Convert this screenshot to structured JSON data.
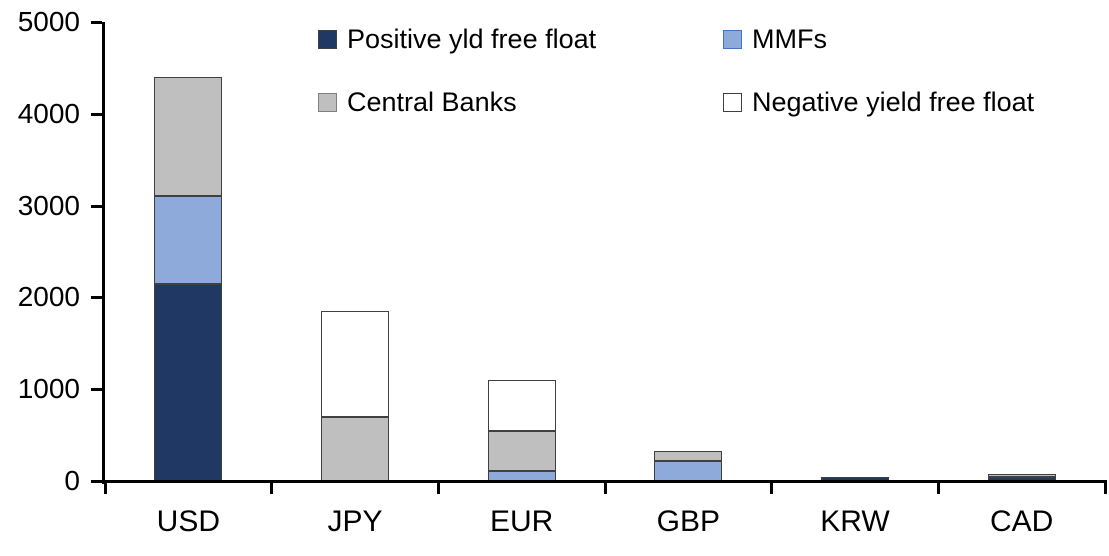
{
  "chart_data": {
    "type": "bar",
    "stacked": true,
    "title": "",
    "xlabel": "",
    "ylabel": "",
    "categories": [
      "USD",
      "JPY",
      "EUR",
      "GBP",
      "KRW",
      "CAD"
    ],
    "series": [
      {
        "name": "Positive yld free float",
        "color": "#1F3864",
        "border": "#404040",
        "values": [
          2150,
          0,
          0,
          0,
          45,
          45
        ]
      },
      {
        "name": "MMFs",
        "color": "#8EAADB",
        "border": "#4472C4",
        "values": [
          950,
          0,
          110,
          220,
          0,
          0
        ]
      },
      {
        "name": "Central Banks",
        "color": "#BFBFBF",
        "border": "#7F7F7F",
        "values": [
          1300,
          700,
          430,
          110,
          0,
          30
        ]
      },
      {
        "name": "Negative yield free float",
        "color": "#FFFFFF",
        "border": "#404040",
        "values": [
          0,
          1150,
          560,
          0,
          0,
          0
        ]
      }
    ],
    "stack_order_bottom_to_top": [
      "Positive yld free float",
      "MMFs",
      "Central Banks",
      "Negative yield free float"
    ],
    "totals": {
      "USD": 4400,
      "JPY": 1850,
      "EUR": 1100,
      "GBP": 330,
      "KRW": 45,
      "CAD": 75
    },
    "ylim": [
      0,
      5000
    ],
    "yticks": [
      "0",
      "1000",
      "2000",
      "3000",
      "4000",
      "5000"
    ],
    "grid": false,
    "legend_position": "top",
    "legend_rows": [
      [
        "Positive yld free float",
        "MMFs"
      ],
      [
        "Central Banks",
        "Negative yield free float"
      ]
    ]
  },
  "colors": {
    "background": "#FFFFFF",
    "axis": "#000000",
    "text": "#000000",
    "segment_border": "#404040"
  }
}
